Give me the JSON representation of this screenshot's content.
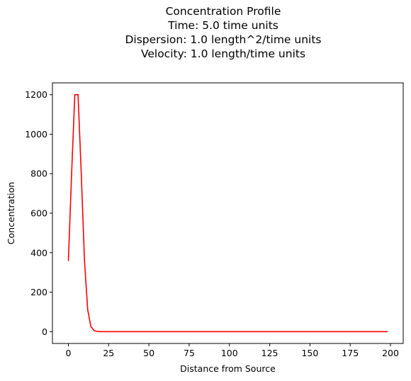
{
  "chart_data": {
    "type": "line",
    "title_lines": [
      "Concentration Profile",
      "Time: 5.0 time units",
      "Dispersion: 1.0 length^2/time units",
      "Velocity: 1.0 length/time units"
    ],
    "xlabel": "Distance from Source",
    "ylabel": "Concentration",
    "xlim": [
      -9.9,
      207.9
    ],
    "ylim": [
      -60,
      1260
    ],
    "x_ticks": [
      0,
      25,
      50,
      75,
      100,
      125,
      150,
      175,
      200
    ],
    "y_ticks": [
      0,
      200,
      400,
      600,
      800,
      1000,
      1200
    ],
    "grid": false,
    "series": [
      {
        "color": "#ff0000",
        "x": [
          0,
          2,
          4,
          6,
          8,
          10,
          12,
          14,
          16,
          18,
          20,
          25,
          50,
          75,
          100,
          125,
          150,
          175,
          198
        ],
        "y": [
          360,
          800,
          1200,
          1200,
          800,
          360,
          110,
          25,
          5,
          1,
          0,
          0,
          0,
          0,
          0,
          0,
          0,
          0,
          0
        ]
      }
    ]
  }
}
